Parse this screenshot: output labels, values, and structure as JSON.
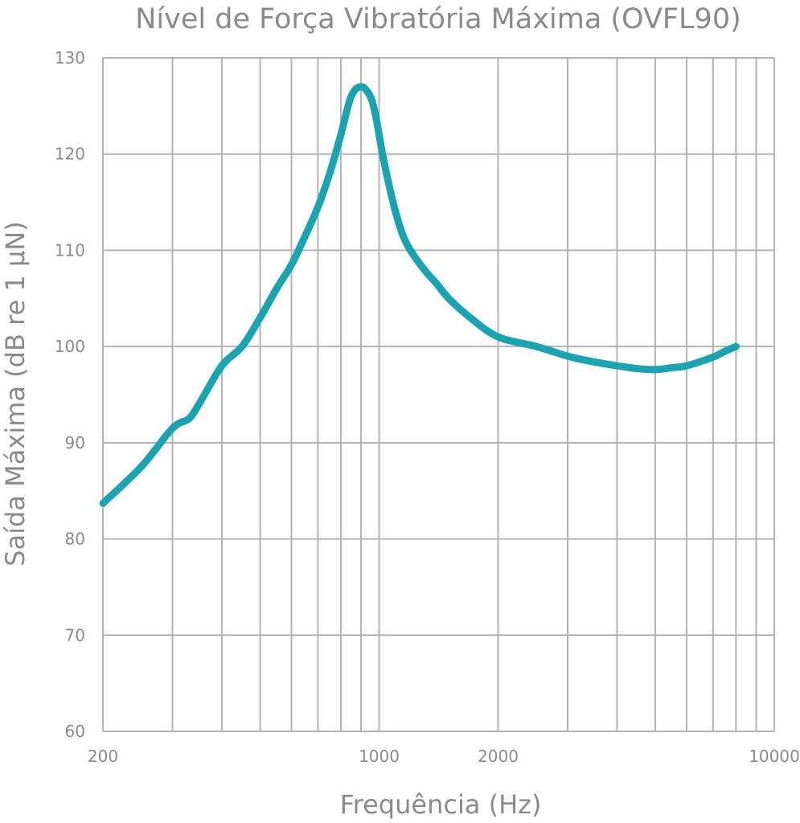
{
  "chart_data": {
    "type": "line",
    "title": "Nível de Força Vibratória Máxima (OVFL90)",
    "xlabel": "Frequência (Hz)",
    "ylabel": "Saída Máxima (dB re 1 μN)",
    "xscale": "log",
    "xlim": [
      200,
      10000
    ],
    "ylim": [
      60,
      130
    ],
    "x_tick_labels": [
      "200",
      "1000",
      "2000",
      "10000"
    ],
    "x_ticks": [
      200,
      1000,
      2000,
      10000
    ],
    "y_ticks": [
      60,
      70,
      80,
      90,
      100,
      110,
      120,
      130
    ],
    "y_tick_labels": [
      "60",
      "70",
      "80",
      "90",
      "100",
      "110",
      "120",
      "130"
    ],
    "grid": true,
    "x_grid_lines": [
      200,
      300,
      400,
      500,
      600,
      700,
      800,
      900,
      1000,
      2000,
      3000,
      4000,
      5000,
      6000,
      7000,
      8000,
      9000,
      10000
    ],
    "line_color": "#1aa3b0",
    "grid_color": "#b3b3b3",
    "series": [
      {
        "x": [
          200,
          250,
          300,
          330,
          350,
          400,
          450,
          500,
          550,
          600,
          650,
          700,
          750,
          800,
          850,
          900,
          950,
          980,
          1000,
          1020,
          1050,
          1100,
          1150,
          1200,
          1300,
          1400,
          1500,
          1700,
          2000,
          2500,
          3000,
          3500,
          4000,
          4500,
          5000,
          5500,
          6000,
          7000,
          7500,
          8000
        ],
        "y": [
          83.7,
          87.5,
          91.5,
          92.5,
          94,
          98,
          100,
          103,
          106,
          108.5,
          111.5,
          114.5,
          118,
          122,
          126,
          127,
          126,
          124,
          122,
          120,
          117.5,
          114,
          111.5,
          110,
          108,
          106.5,
          105,
          103,
          101,
          100,
          99,
          98.4,
          98,
          97.7,
          97.6,
          97.8,
          98,
          98.9,
          99.5,
          100
        ]
      }
    ]
  }
}
